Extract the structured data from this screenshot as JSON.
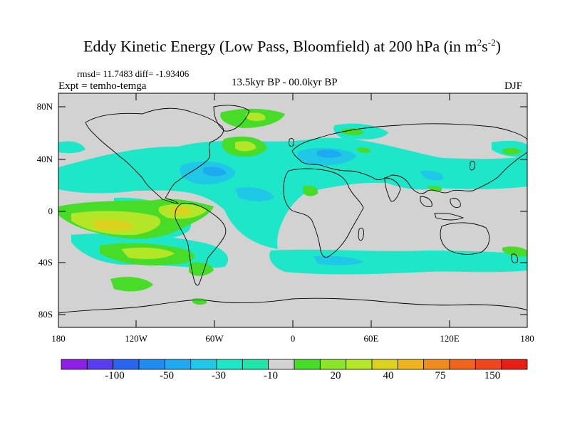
{
  "title": "Eddy Kinetic Energy (Low Pass, Bloomfield) at 200 hPa (in m",
  "title_sup1": "2",
  "title_mid": "s",
  "title_sup2": "-2",
  "title_end": ")",
  "stats": "rmsd= 11.7483 diff= -1.93406",
  "expt": "Expt = temho-temga",
  "subtitle": "13.5kyr BP - 00.0kyr BP",
  "season": "DJF",
  "y_ticks": [
    "80N",
    "40N",
    "0",
    "40S",
    "80S"
  ],
  "x_ticks": [
    "180",
    "120W",
    "60W",
    "0",
    "60E",
    "120E",
    "180"
  ],
  "colorbar": {
    "labels": [
      "-100",
      "-50",
      "-30",
      "-10",
      "20",
      "40",
      "75",
      "150"
    ],
    "colors": [
      "#8c1ee6",
      "#5a3cf0",
      "#2864f0",
      "#1e8cf0",
      "#1eaaf0",
      "#1ec8e6",
      "#1ee6c8",
      "#1ee6aa",
      "#d2d2d2",
      "#46dc28",
      "#8ce628",
      "#b4e628",
      "#dcd21e",
      "#f0b41e",
      "#f08c1e",
      "#f0641e",
      "#f0461e",
      "#e61e14"
    ]
  },
  "colors": {
    "land_background": "#d2d2d2",
    "coastline": "#000000"
  }
}
